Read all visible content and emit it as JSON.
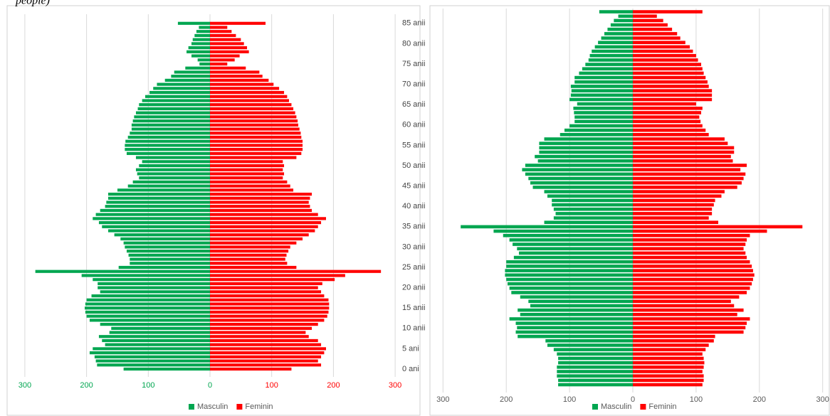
{
  "caption": "people)",
  "chart_data": [
    {
      "type": "pyramid",
      "categories": [
        "0 ani",
        null,
        null,
        null,
        null,
        "5 ani",
        null,
        null,
        null,
        null,
        "10 anii",
        null,
        null,
        null,
        null,
        "15 anii",
        null,
        null,
        null,
        null,
        "20 anii",
        null,
        null,
        null,
        null,
        "25 anii",
        null,
        null,
        null,
        null,
        "30 anii",
        null,
        null,
        null,
        null,
        "35 anii",
        null,
        null,
        null,
        null,
        "40 anii",
        null,
        null,
        null,
        null,
        "45 anii",
        null,
        null,
        null,
        null,
        "50 anii",
        null,
        null,
        null,
        null,
        "55 anii",
        null,
        null,
        null,
        null,
        "60 anii",
        null,
        null,
        null,
        null,
        "65 anii",
        null,
        null,
        null,
        null,
        "70 anii",
        null,
        null,
        null,
        null,
        "75 anii",
        null,
        null,
        null,
        null,
        "80 anii",
        null,
        null,
        null,
        null,
        "85 anii"
      ],
      "series": [
        {
          "name": "Masculin",
          "color": "#00a650",
          "values": [
            -140,
            -183,
            -185,
            -187,
            -195,
            -190,
            -170,
            -175,
            -180,
            -163,
            -160,
            -178,
            -195,
            -200,
            -202,
            -203,
            -202,
            -200,
            -192,
            -178,
            -182,
            -182,
            -190,
            -208,
            -283,
            -148,
            -130,
            -130,
            -132,
            -135,
            -138,
            -140,
            -145,
            -155,
            -165,
            -175,
            -180,
            -190,
            -185,
            -178,
            -170,
            -168,
            -165,
            -165,
            -150,
            -133,
            -125,
            -115,
            -118,
            -120,
            -115,
            -110,
            -120,
            -135,
            -138,
            -138,
            -137,
            -133,
            -130,
            -127,
            -127,
            -125,
            -123,
            -120,
            -117,
            -115,
            -110,
            -105,
            -98,
            -92,
            -86,
            -73,
            -63,
            -58,
            -40,
            -17,
            -20,
            -30,
            -38,
            -35,
            -30,
            -28,
            -25,
            -22,
            -18,
            -52
          ]
        },
        {
          "name": "Feminin",
          "color": "#ff0000",
          "values": [
            132,
            180,
            175,
            180,
            185,
            188,
            180,
            175,
            160,
            155,
            165,
            175,
            185,
            190,
            192,
            193,
            193,
            192,
            185,
            180,
            175,
            182,
            202,
            219,
            277,
            140,
            125,
            122,
            124,
            127,
            130,
            140,
            150,
            160,
            170,
            175,
            180,
            188,
            175,
            165,
            162,
            160,
            162,
            165,
            135,
            130,
            125,
            118,
            120,
            118,
            120,
            118,
            140,
            148,
            150,
            150,
            150,
            148,
            147,
            145,
            143,
            142,
            140,
            138,
            135,
            132,
            128,
            125,
            120,
            112,
            103,
            95,
            85,
            80,
            58,
            28,
            40,
            48,
            63,
            60,
            55,
            50,
            42,
            35,
            28,
            90
          ]
        }
      ],
      "xlim": [
        -300,
        300
      ],
      "xticks": [
        {
          "value": -300,
          "label": "300"
        },
        {
          "value": -200,
          "label": "200"
        },
        {
          "value": -100,
          "label": "100"
        },
        0,
        100,
        200,
        300
      ],
      "grid": true
    },
    {
      "type": "pyramid",
      "categories": [
        null,
        null,
        null,
        null,
        null,
        null,
        null,
        null,
        null,
        null,
        null,
        null,
        null,
        null,
        null,
        null,
        null,
        null,
        null,
        null,
        null,
        null,
        null,
        null,
        null,
        null,
        null,
        null,
        null,
        null,
        null,
        null,
        null,
        null,
        null,
        null,
        null,
        null,
        null,
        null,
        null,
        null,
        null,
        null,
        null,
        null,
        null,
        null,
        null,
        null,
        null,
        null,
        null,
        null,
        null,
        null,
        null,
        null,
        null,
        null,
        null,
        null,
        null,
        null,
        null,
        null,
        null,
        null,
        null,
        null,
        null,
        null,
        null,
        null,
        null,
        null,
        null,
        null,
        null,
        null,
        null,
        null,
        null,
        null,
        null,
        null
      ],
      "series": [
        {
          "name": "Masculin",
          "color": "#00a650",
          "values": [
            -118,
            -118,
            -120,
            -120,
            -120,
            -118,
            -118,
            -120,
            -125,
            -135,
            -138,
            -182,
            -185,
            -183,
            -185,
            -195,
            -178,
            -182,
            -162,
            -165,
            -178,
            -192,
            -195,
            -198,
            -200,
            -202,
            -202,
            -200,
            -200,
            -188,
            -180,
            -183,
            -190,
            -195,
            -205,
            -220,
            -272,
            -140,
            -125,
            -122,
            -125,
            -128,
            -128,
            -135,
            -140,
            -158,
            -162,
            -165,
            -170,
            -175,
            -170,
            -150,
            -155,
            -148,
            -148,
            -148,
            -140,
            -115,
            -108,
            -100,
            -92,
            -92,
            -93,
            -94,
            -88,
            -100,
            -98,
            -97,
            -98,
            -92,
            -92,
            -85,
            -80,
            -75,
            -70,
            -68,
            -65,
            -60,
            -55,
            -50,
            -45,
            -40,
            -35,
            -30,
            -23,
            -53
          ]
        },
        {
          "name": "Feminin",
          "color": "#ff0000",
          "values": [
            110,
            112,
            112,
            110,
            112,
            113,
            112,
            110,
            115,
            120,
            128,
            130,
            175,
            178,
            180,
            185,
            165,
            175,
            160,
            155,
            168,
            180,
            185,
            188,
            190,
            192,
            190,
            188,
            185,
            180,
            178,
            175,
            178,
            180,
            185,
            212,
            268,
            135,
            120,
            125,
            125,
            128,
            130,
            140,
            145,
            165,
            172,
            175,
            178,
            170,
            180,
            158,
            155,
            160,
            160,
            150,
            145,
            120,
            115,
            110,
            107,
            105,
            108,
            110,
            100,
            125,
            125,
            125,
            120,
            118,
            115,
            112,
            110,
            108,
            103,
            100,
            95,
            90,
            83,
            75,
            70,
            62,
            55,
            48,
            38,
            110
          ]
        }
      ],
      "xlim": [
        -300,
        300
      ],
      "xticks": [
        {
          "value": -300,
          "label": "300"
        },
        {
          "value": -200,
          "label": "200"
        },
        {
          "value": -100,
          "label": "100"
        },
        0,
        100,
        200,
        300
      ],
      "grid": true
    }
  ]
}
